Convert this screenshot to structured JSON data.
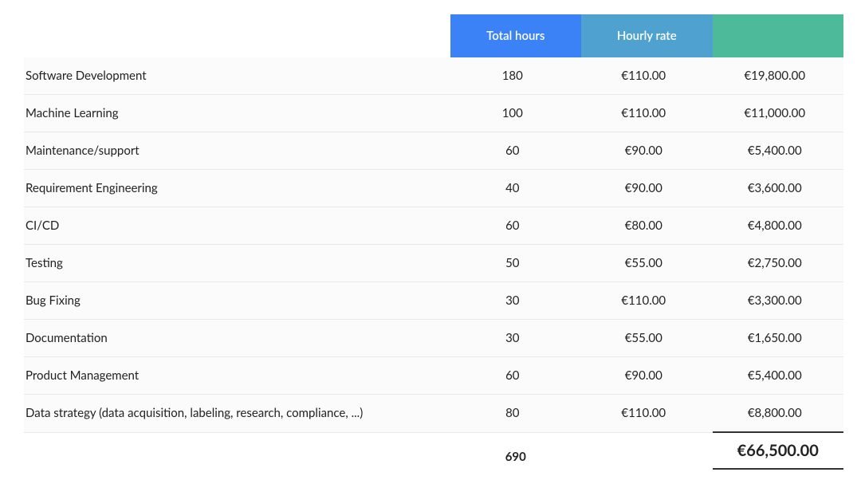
{
  "styling": {
    "header_gradient_start": "#3b82f6",
    "header_mid": "#4fa2cf",
    "header_gradient_end": "#4dbb9a",
    "row_bg": "#fbfbfb",
    "text_color": "#222222",
    "border_color": "#e9e9e9",
    "font_size_body": 15,
    "font_size_total": 20
  },
  "table": {
    "headers": {
      "task": "",
      "hours": "Total hours",
      "rate": "Hourly rate",
      "total": ""
    },
    "rows": [
      {
        "task": "Software Development",
        "hours": "180",
        "rate": "€110.00",
        "total": "€19,800.00"
      },
      {
        "task": "Machine Learning",
        "hours": "100",
        "rate": "€110.00",
        "total": "€11,000.00"
      },
      {
        "task": "Maintenance/support",
        "hours": "60",
        "rate": "€90.00",
        "total": "€5,400.00"
      },
      {
        "task": "Requirement Engineering",
        "hours": "40",
        "rate": "€90.00",
        "total": "€3,600.00"
      },
      {
        "task": "CI/CD",
        "hours": "60",
        "rate": "€80.00",
        "total": "€4,800.00"
      },
      {
        "task": "Testing",
        "hours": "50",
        "rate": "€55.00",
        "total": "€2,750.00"
      },
      {
        "task": "Bug Fixing",
        "hours": "30",
        "rate": "€110.00",
        "total": "€3,300.00"
      },
      {
        "task": "Documentation",
        "hours": "30",
        "rate": "€55.00",
        "total": "€1,650.00"
      },
      {
        "task": "Product Management",
        "hours": "60",
        "rate": "€90.00",
        "total": "€5,400.00"
      },
      {
        "task": "Data strategy (data acquisition, labeling, research, compliance, ...)",
        "hours": "80",
        "rate": "€110.00",
        "total": "€8,800.00"
      }
    ],
    "footer": {
      "hours_total": "690",
      "grand_total": "€66,500.00"
    }
  }
}
